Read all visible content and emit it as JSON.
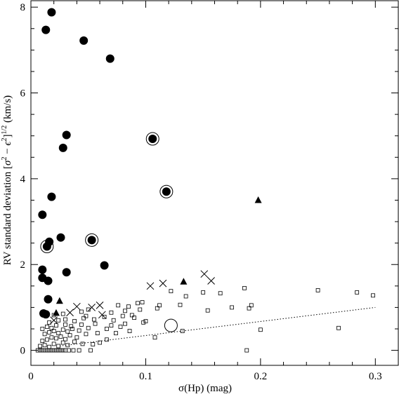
{
  "chart_data": {
    "type": "scatter",
    "title": "",
    "xlabel": "σ(Hp) (mag)",
    "ylabel_parts": {
      "prefix": "RV standard deviation [",
      "sigma": "σ",
      "minus": " − ",
      "eps": "ϵ",
      "sup2": "2",
      "mid": "]",
      "half": "1/2",
      "units": " (km/s)"
    },
    "xlim": [
      0.0,
      0.32
    ],
    "ylim": [
      -0.35,
      8.15
    ],
    "xticks": [
      0,
      0.1,
      0.2,
      0.3
    ],
    "xtick_labels": [
      "0",
      "0.1",
      "0.2",
      "0.3"
    ],
    "yticks": [
      0,
      2,
      4,
      6,
      8
    ],
    "ytick_labels": [
      "0",
      "2",
      "4",
      "6",
      "8"
    ],
    "grid": false,
    "legend": "none",
    "series": [
      {
        "marker": "filled-circle",
        "points": [
          [
            0.018,
            7.88
          ],
          [
            0.013,
            7.47
          ],
          [
            0.046,
            7.22
          ],
          [
            0.069,
            6.8
          ],
          [
            0.031,
            5.02
          ],
          [
            0.028,
            4.72
          ],
          [
            0.018,
            3.58
          ],
          [
            0.01,
            3.16
          ],
          [
            0.026,
            2.63
          ],
          [
            0.016,
            2.53
          ],
          [
            0.031,
            1.82
          ],
          [
            0.064,
            1.98
          ],
          [
            0.01,
            1.88
          ],
          [
            0.01,
            1.69
          ],
          [
            0.015,
            1.62
          ],
          [
            0.015,
            1.19
          ],
          [
            0.011,
            0.86
          ],
          [
            0.013,
            0.84
          ],
          [
            0.014,
            2.42
          ],
          [
            0.053,
            2.57
          ],
          [
            0.106,
            4.93
          ],
          [
            0.118,
            3.7
          ]
        ]
      },
      {
        "marker": "open-circle-ring",
        "points": [
          [
            0.014,
            2.42
          ],
          [
            0.053,
            2.57
          ],
          [
            0.106,
            4.93
          ],
          [
            0.118,
            3.7
          ],
          [
            0.122,
            0.58
          ]
        ]
      },
      {
        "marker": "filled-triangle",
        "points": [
          [
            0.198,
            3.5
          ],
          [
            0.133,
            1.6
          ],
          [
            0.025,
            1.15
          ],
          [
            0.022,
            0.87
          ]
        ]
      },
      {
        "marker": "cross",
        "points": [
          [
            0.151,
            1.78
          ],
          [
            0.157,
            1.62
          ],
          [
            0.115,
            1.56
          ],
          [
            0.104,
            1.5
          ],
          [
            0.04,
            1.02
          ],
          [
            0.053,
            1.0
          ],
          [
            0.06,
            1.05
          ],
          [
            0.034,
            0.88
          ],
          [
            0.062,
            0.83
          ],
          [
            0.02,
            0.7
          ]
        ]
      },
      {
        "marker": "open-square",
        "points": [
          [
            0.006,
            0.0
          ],
          [
            0.008,
            0.0
          ],
          [
            0.01,
            0.0
          ],
          [
            0.012,
            0.0
          ],
          [
            0.014,
            0.0
          ],
          [
            0.016,
            0.0
          ],
          [
            0.018,
            0.0
          ],
          [
            0.02,
            0.0
          ],
          [
            0.022,
            0.0
          ],
          [
            0.024,
            0.0
          ],
          [
            0.026,
            0.0
          ],
          [
            0.028,
            0.0
          ],
          [
            0.03,
            0.0
          ],
          [
            0.033,
            0.0
          ],
          [
            0.037,
            0.0
          ],
          [
            0.042,
            0.0
          ],
          [
            0.052,
            0.0
          ],
          [
            0.188,
            0.0
          ],
          [
            0.008,
            0.1
          ],
          [
            0.012,
            0.12
          ],
          [
            0.016,
            0.08
          ],
          [
            0.02,
            0.15
          ],
          [
            0.024,
            0.1
          ],
          [
            0.028,
            0.18
          ],
          [
            0.032,
            0.12
          ],
          [
            0.038,
            0.2
          ],
          [
            0.045,
            0.15
          ],
          [
            0.054,
            0.14
          ],
          [
            0.01,
            0.22
          ],
          [
            0.014,
            0.25
          ],
          [
            0.018,
            0.3
          ],
          [
            0.022,
            0.28
          ],
          [
            0.026,
            0.32
          ],
          [
            0.03,
            0.26
          ],
          [
            0.034,
            0.35
          ],
          [
            0.04,
            0.3
          ],
          [
            0.048,
            0.38
          ],
          [
            0.058,
            0.4
          ],
          [
            0.012,
            0.38
          ],
          [
            0.016,
            0.42
          ],
          [
            0.02,
            0.45
          ],
          [
            0.024,
            0.4
          ],
          [
            0.028,
            0.48
          ],
          [
            0.032,
            0.44
          ],
          [
            0.036,
            0.5
          ],
          [
            0.042,
            0.46
          ],
          [
            0.05,
            0.52
          ],
          [
            0.066,
            0.5
          ],
          [
            0.01,
            0.5
          ],
          [
            0.014,
            0.55
          ],
          [
            0.018,
            0.52
          ],
          [
            0.022,
            0.58
          ],
          [
            0.03,
            0.6
          ],
          [
            0.035,
            0.56
          ],
          [
            0.044,
            0.6
          ],
          [
            0.056,
            0.62
          ],
          [
            0.07,
            0.58
          ],
          [
            0.078,
            0.55
          ],
          [
            0.016,
            0.65
          ],
          [
            0.024,
            0.7
          ],
          [
            0.03,
            0.72
          ],
          [
            0.038,
            0.68
          ],
          [
            0.046,
            0.75
          ],
          [
            0.055,
            0.72
          ],
          [
            0.064,
            0.78
          ],
          [
            0.072,
            0.7
          ],
          [
            0.08,
            0.8
          ],
          [
            0.09,
            0.76
          ],
          [
            0.02,
            0.82
          ],
          [
            0.028,
            0.85
          ],
          [
            0.044,
            0.9
          ],
          [
            0.07,
            0.88
          ],
          [
            0.082,
            0.92
          ],
          [
            0.095,
            0.95
          ],
          [
            0.088,
            0.82
          ],
          [
            0.05,
            0.95
          ],
          [
            0.048,
            0.8
          ],
          [
            0.076,
            1.05
          ],
          [
            0.085,
            1.02
          ],
          [
            0.093,
            1.1
          ],
          [
            0.097,
            1.12
          ],
          [
            0.112,
            1.05
          ],
          [
            0.122,
            1.38
          ],
          [
            0.13,
            1.06
          ],
          [
            0.135,
            1.26
          ],
          [
            0.15,
            1.35
          ],
          [
            0.154,
            0.93
          ],
          [
            0.165,
            1.33
          ],
          [
            0.175,
            1.0
          ],
          [
            0.186,
            1.45
          ],
          [
            0.19,
            0.98
          ],
          [
            0.192,
            1.05
          ],
          [
            0.25,
            1.4
          ],
          [
            0.284,
            1.35
          ],
          [
            0.298,
            1.28
          ],
          [
            0.268,
            0.52
          ],
          [
            0.2,
            0.48
          ],
          [
            0.132,
            0.45
          ],
          [
            0.108,
            0.3
          ],
          [
            0.06,
            0.18
          ],
          [
            0.066,
            0.25
          ],
          [
            0.074,
            0.4
          ],
          [
            0.11,
            0.98
          ],
          [
            0.1,
            0.68
          ],
          [
            0.086,
            0.45
          ],
          [
            0.082,
            0.62
          ],
          [
            0.098,
            0.65
          ]
        ]
      },
      {
        "marker": "dotted-line",
        "points": [
          [
            0.025,
            0.1
          ],
          [
            0.3,
            1.0
          ]
        ]
      }
    ]
  }
}
